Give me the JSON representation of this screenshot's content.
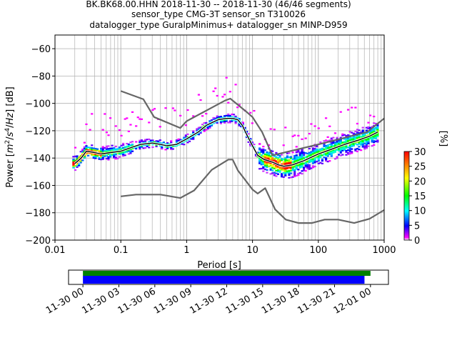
{
  "chart_data": {
    "type": "heatmap",
    "title_lines": [
      "BK.BK68.00.HHN   2018-11-30 -- 2018-11-30  (46/46 segments)",
      "sensor_type CMG-3T sensor_sn T310026",
      "datalogger_type GuralpMinimus+ datalogger_sn MINP-D959"
    ],
    "xlabel": "Period [s]",
    "ylabel": "Power [m²/s⁴/Hz] [dB]",
    "xscale": "log",
    "xlim": [
      0.01,
      1000
    ],
    "ylim": [
      -200,
      -50
    ],
    "xticks": [
      0.01,
      0.1,
      1,
      10,
      100,
      1000
    ],
    "xtick_labels": [
      "0.01",
      "0.1",
      "1",
      "10",
      "100",
      "1000"
    ],
    "yticks": [
      -200,
      -180,
      -160,
      -140,
      -120,
      -100,
      -80,
      -60
    ],
    "ytick_labels": [
      "−200",
      "−180",
      "−160",
      "−140",
      "−120",
      "−100",
      "−80",
      "−60"
    ],
    "grid": true,
    "colorbar": {
      "label": "[%]",
      "range": [
        0,
        30
      ],
      "ticks": [
        0,
        5,
        10,
        15,
        20,
        25,
        30
      ],
      "tick_labels": [
        "0",
        "5",
        "10",
        "15",
        "20",
        "25",
        "30"
      ]
    },
    "noise_models": [
      {
        "name": "NHNM",
        "color": "#666666",
        "points": [
          [
            0.1,
            -91
          ],
          [
            0.22,
            -97
          ],
          [
            0.32,
            -110
          ],
          [
            0.8,
            -118
          ],
          [
            1.0,
            -113
          ],
          [
            3.8,
            -98
          ],
          [
            4.6,
            -96.5
          ],
          [
            6.0,
            -101
          ],
          [
            8.0,
            -106
          ],
          [
            10,
            -110
          ],
          [
            14,
            -121
          ],
          [
            20,
            -138
          ],
          [
            100,
            -130
          ],
          [
            550,
            -121
          ],
          [
            1000,
            -111
          ]
        ]
      },
      {
        "name": "NLNM",
        "color": "#666666",
        "points": [
          [
            0.1,
            -168
          ],
          [
            0.17,
            -166.7
          ],
          [
            0.4,
            -166.7
          ],
          [
            0.8,
            -169.2
          ],
          [
            1.3,
            -163.7
          ],
          [
            2.4,
            -148.6
          ],
          [
            4.3,
            -141.1
          ],
          [
            5.0,
            -141.1
          ],
          [
            6.0,
            -149
          ],
          [
            10,
            -163
          ],
          [
            12,
            -166
          ],
          [
            15.6,
            -162
          ],
          [
            22,
            -177.5
          ],
          [
            32,
            -185
          ],
          [
            50,
            -187.5
          ],
          [
            80,
            -187.5
          ],
          [
            125,
            -185
          ],
          [
            200,
            -185
          ],
          [
            350,
            -187.5
          ],
          [
            600,
            -184.4
          ],
          [
            1000,
            -178
          ]
        ]
      }
    ],
    "mode_curve": {
      "color": "#000000",
      "points": [
        [
          0.02,
          -144
        ],
        [
          0.025,
          -140
        ],
        [
          0.03,
          -135
        ],
        [
          0.04,
          -136
        ],
        [
          0.05,
          -137
        ],
        [
          0.07,
          -136
        ],
        [
          0.1,
          -135
        ],
        [
          0.15,
          -132
        ],
        [
          0.2,
          -130
        ],
        [
          0.3,
          -129
        ],
        [
          0.4,
          -130
        ],
        [
          0.5,
          -131
        ],
        [
          0.7,
          -130
        ],
        [
          1.0,
          -126
        ],
        [
          1.5,
          -121
        ],
        [
          2.0,
          -116
        ],
        [
          3.0,
          -112
        ],
        [
          4.0,
          -111
        ],
        [
          5.0,
          -111
        ],
        [
          6.0,
          -112
        ],
        [
          7.0,
          -116
        ],
        [
          8.0,
          -122
        ],
        [
          10,
          -131
        ],
        [
          12,
          -138
        ],
        [
          15,
          -141
        ],
        [
          20,
          -143
        ],
        [
          25,
          -145
        ],
        [
          30,
          -146
        ],
        [
          40,
          -145
        ],
        [
          60,
          -142
        ],
        [
          100,
          -137
        ],
        [
          150,
          -134
        ],
        [
          250,
          -130
        ],
        [
          400,
          -127
        ],
        [
          600,
          -124
        ],
        [
          800,
          -121
        ]
      ]
    },
    "mean_curve": {
      "color": "#ffffff",
      "points": [
        [
          0.02,
          -145
        ],
        [
          0.03,
          -136
        ],
        [
          0.05,
          -137
        ],
        [
          0.1,
          -135
        ],
        [
          0.2,
          -130
        ],
        [
          0.4,
          -130
        ],
        [
          0.7,
          -130
        ],
        [
          1.0,
          -126
        ],
        [
          2.0,
          -116
        ],
        [
          3.0,
          -112
        ],
        [
          5.0,
          -111
        ],
        [
          7.0,
          -116
        ],
        [
          10,
          -131
        ],
        [
          15,
          -142
        ],
        [
          25,
          -145
        ],
        [
          40,
          -145
        ],
        [
          100,
          -137
        ],
        [
          250,
          -130
        ],
        [
          600,
          -124
        ],
        [
          800,
          -121
        ]
      ]
    },
    "data_coverage": {
      "ticks": [
        "11-30 00",
        "11-30 03",
        "11-30 06",
        "11-30 09",
        "11-30 12",
        "11-30 15",
        "11-30 18",
        "11-30 21",
        "12-01 00"
      ],
      "range_hours": [
        -1.2,
        25.5
      ],
      "used_bar": {
        "color": "#0000ff",
        "start_hours": 0,
        "end_hours": 23.5
      },
      "available_bar": {
        "color": "#008000",
        "start_hours": 0,
        "end_hours": 24.0
      }
    }
  }
}
